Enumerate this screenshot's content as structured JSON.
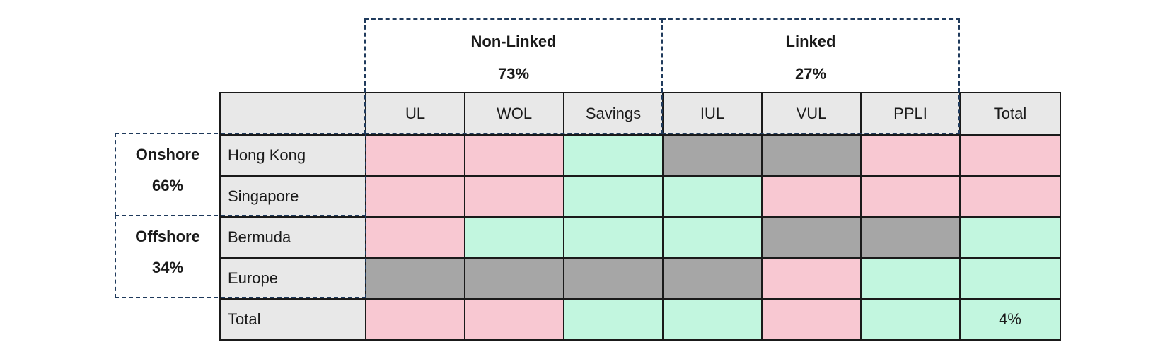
{
  "groups": {
    "non_linked": {
      "label": "Non-Linked",
      "share": "73%"
    },
    "linked": {
      "label": "Linked",
      "share": "27%"
    },
    "onshore": {
      "label": "Onshore",
      "share": "66%"
    },
    "offshore": {
      "label": "Offshore",
      "share": "34%"
    }
  },
  "columns": [
    "UL",
    "WOL",
    "Savings",
    "IUL",
    "VUL",
    "PPLI",
    "Total"
  ],
  "rows": [
    {
      "label": "Hong Kong",
      "cells": [
        {
          "status": "pink",
          "text": ""
        },
        {
          "status": "pink",
          "text": ""
        },
        {
          "status": "green",
          "text": ""
        },
        {
          "status": "gray",
          "text": ""
        },
        {
          "status": "gray",
          "text": ""
        },
        {
          "status": "pink",
          "text": ""
        },
        {
          "status": "pink",
          "text": ""
        }
      ]
    },
    {
      "label": "Singapore",
      "cells": [
        {
          "status": "pink",
          "text": ""
        },
        {
          "status": "pink",
          "text": ""
        },
        {
          "status": "green",
          "text": ""
        },
        {
          "status": "green",
          "text": ""
        },
        {
          "status": "pink",
          "text": ""
        },
        {
          "status": "pink",
          "text": ""
        },
        {
          "status": "pink",
          "text": ""
        }
      ]
    },
    {
      "label": "Bermuda",
      "cells": [
        {
          "status": "pink",
          "text": ""
        },
        {
          "status": "green",
          "text": ""
        },
        {
          "status": "green",
          "text": ""
        },
        {
          "status": "green",
          "text": ""
        },
        {
          "status": "gray",
          "text": ""
        },
        {
          "status": "gray",
          "text": ""
        },
        {
          "status": "green",
          "text": ""
        }
      ]
    },
    {
      "label": "Europe",
      "cells": [
        {
          "status": "gray",
          "text": ""
        },
        {
          "status": "gray",
          "text": ""
        },
        {
          "status": "gray",
          "text": ""
        },
        {
          "status": "gray",
          "text": ""
        },
        {
          "status": "pink",
          "text": ""
        },
        {
          "status": "green",
          "text": ""
        },
        {
          "status": "green",
          "text": ""
        }
      ]
    },
    {
      "label": "Total",
      "cells": [
        {
          "status": "pink",
          "text": ""
        },
        {
          "status": "pink",
          "text": ""
        },
        {
          "status": "green",
          "text": ""
        },
        {
          "status": "green",
          "text": ""
        },
        {
          "status": "pink",
          "text": ""
        },
        {
          "status": "green",
          "text": ""
        },
        {
          "status": "green",
          "text": "4%"
        }
      ]
    }
  ],
  "colors": {
    "pink": "#f8c8d2",
    "green": "#c2f6df",
    "gray": "#a6a6a6",
    "header": "#e8e8e8",
    "dashed_border": "#1f3a5c"
  }
}
